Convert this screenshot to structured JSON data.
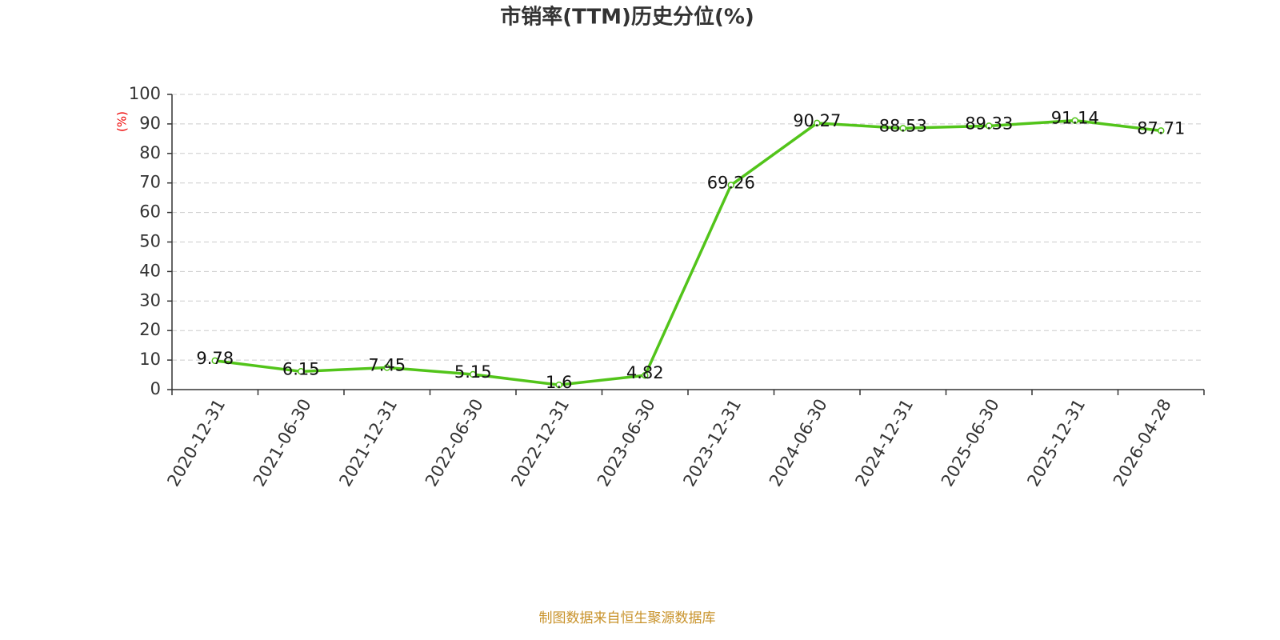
{
  "chart_data": {
    "type": "line",
    "title": "市销率(TTM)历史分位(%)",
    "y_label": "(%)",
    "source": "制图数据来自恒生聚源数据库",
    "categories": [
      "2020-12-31",
      "2021-06-30",
      "2021-12-31",
      "2022-06-30",
      "2022-12-31",
      "2023-06-30",
      "2023-12-31",
      "2024-06-30",
      "2024-12-31",
      "2025-06-30",
      "2025-12-31",
      "2026-04-28"
    ],
    "values": [
      9.78,
      6.15,
      7.45,
      5.15,
      1.6,
      4.82,
      69.26,
      90.27,
      88.53,
      89.33,
      91.14,
      87.71
    ],
    "color": "#52c41a",
    "ylim": [
      0,
      100
    ],
    "yticks": [
      0,
      10,
      20,
      30,
      40,
      50,
      60,
      70,
      80,
      90,
      100
    ],
    "grid": true
  }
}
